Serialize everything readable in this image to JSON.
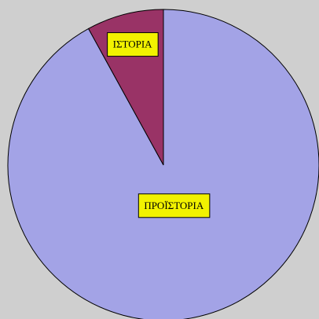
{
  "chart_data": {
    "type": "pie",
    "categories": [
      "ΠΡΟΪΣΤΟΡΙΑ",
      "ΙΣΤΟΡΙΑ"
    ],
    "values": [
      92,
      8
    ],
    "colors": [
      "#a3a3e6",
      "#993366"
    ],
    "label_color": "#f2f200"
  }
}
